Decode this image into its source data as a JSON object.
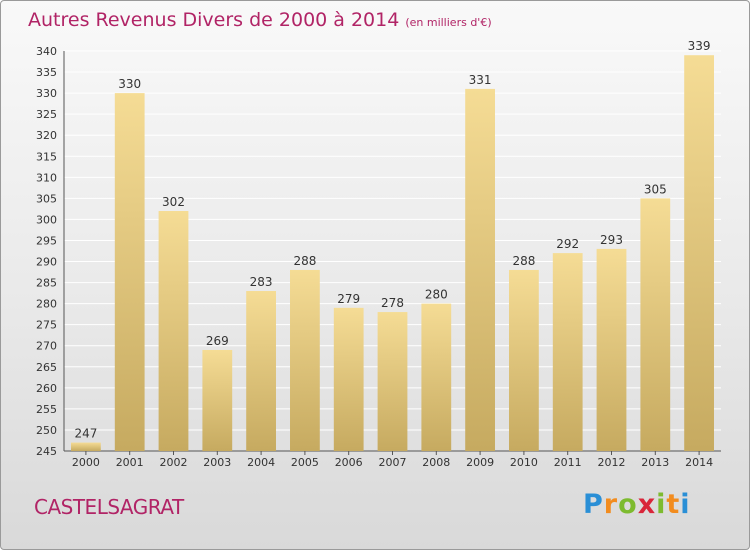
{
  "title": "Autres Revenus Divers de 2000 à 2014",
  "subtitle": "(en milliers d'€)",
  "location": "CASTELSAGRAT",
  "logo": {
    "letters": [
      "P",
      "r",
      "o",
      "x",
      "i",
      "t",
      "i"
    ],
    "colors": [
      "#2a8fd6",
      "#f28c1e",
      "#7dbb2f",
      "#d9263a",
      "#7dbb2f",
      "#f28c1e",
      "#2a8fd6"
    ]
  },
  "colors": {
    "bar_top": "#f5dc95",
    "bar_bottom": "#c6aa60",
    "title": "#b12466",
    "grid": "#ffffff"
  },
  "chart_data": {
    "type": "bar",
    "categories": [
      "2000",
      "2001",
      "2002",
      "2003",
      "2004",
      "2005",
      "2006",
      "2007",
      "2008",
      "2009",
      "2010",
      "2011",
      "2012",
      "2013",
      "2014"
    ],
    "values": [
      247,
      330,
      302,
      269,
      283,
      288,
      279,
      278,
      280,
      331,
      288,
      292,
      293,
      305,
      339
    ],
    "ylim": [
      245,
      340
    ],
    "ytick_step": 5,
    "grid": true,
    "title": "Autres Revenus Divers de 2000 à 2014",
    "xlabel": "",
    "ylabel": ""
  }
}
